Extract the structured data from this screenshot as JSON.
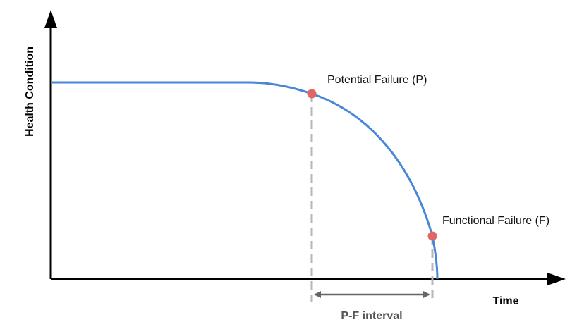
{
  "axes": {
    "x_label": "Time",
    "y_label": "Health Condition"
  },
  "points": {
    "potential_failure": "Potential Failure (P)",
    "functional_failure": "Functional Failure (F)"
  },
  "interval": {
    "label": "P-F interval"
  },
  "colors": {
    "axis": "#000000",
    "curve": "#4a86d8",
    "point": "#e06666",
    "guide": "#b7b7b7",
    "interval_arrow": "#666666"
  }
}
